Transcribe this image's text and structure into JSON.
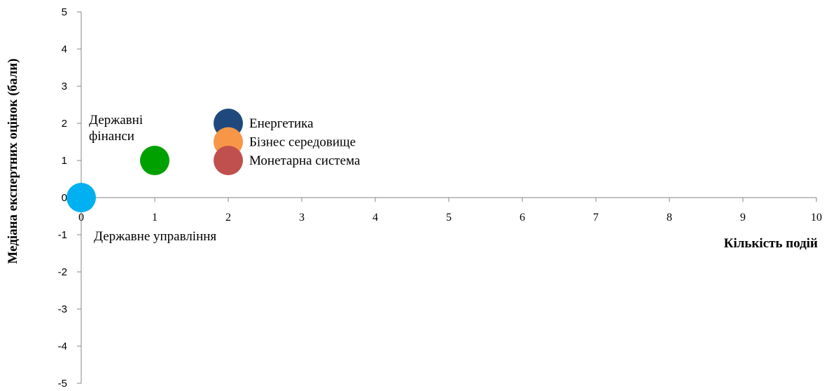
{
  "chart_data": {
    "type": "scatter",
    "xlabel": "Кількість подій",
    "ylabel": "Медіана експертних оцінок (бали)",
    "xlim": [
      0,
      10
    ],
    "ylim": [
      -5,
      5
    ],
    "x_ticks": [
      "0",
      "1",
      "2",
      "3",
      "4",
      "5",
      "6",
      "7",
      "8",
      "9",
      "10"
    ],
    "y_ticks": [
      "5",
      "4",
      "3",
      "2",
      "1",
      "0",
      "-1",
      "-2",
      "-3",
      "-4",
      "-5"
    ],
    "grid": false,
    "points": [
      {
        "name": "Енергетика",
        "x": 2,
        "y": 2,
        "color": "#1F497D"
      },
      {
        "name": "Бізнес середовище",
        "x": 2,
        "y": 1.5,
        "color": "#F79646"
      },
      {
        "name": "Монетарна система",
        "x": 2,
        "y": 1,
        "color": "#C0504D"
      },
      {
        "name_lines": [
          "Державні",
          "фінанси"
        ],
        "x": 1,
        "y": 1,
        "color": "#00A000"
      },
      {
        "name": "Державне управління",
        "x": 0,
        "y": 0,
        "color": "#00B0F0"
      }
    ]
  }
}
